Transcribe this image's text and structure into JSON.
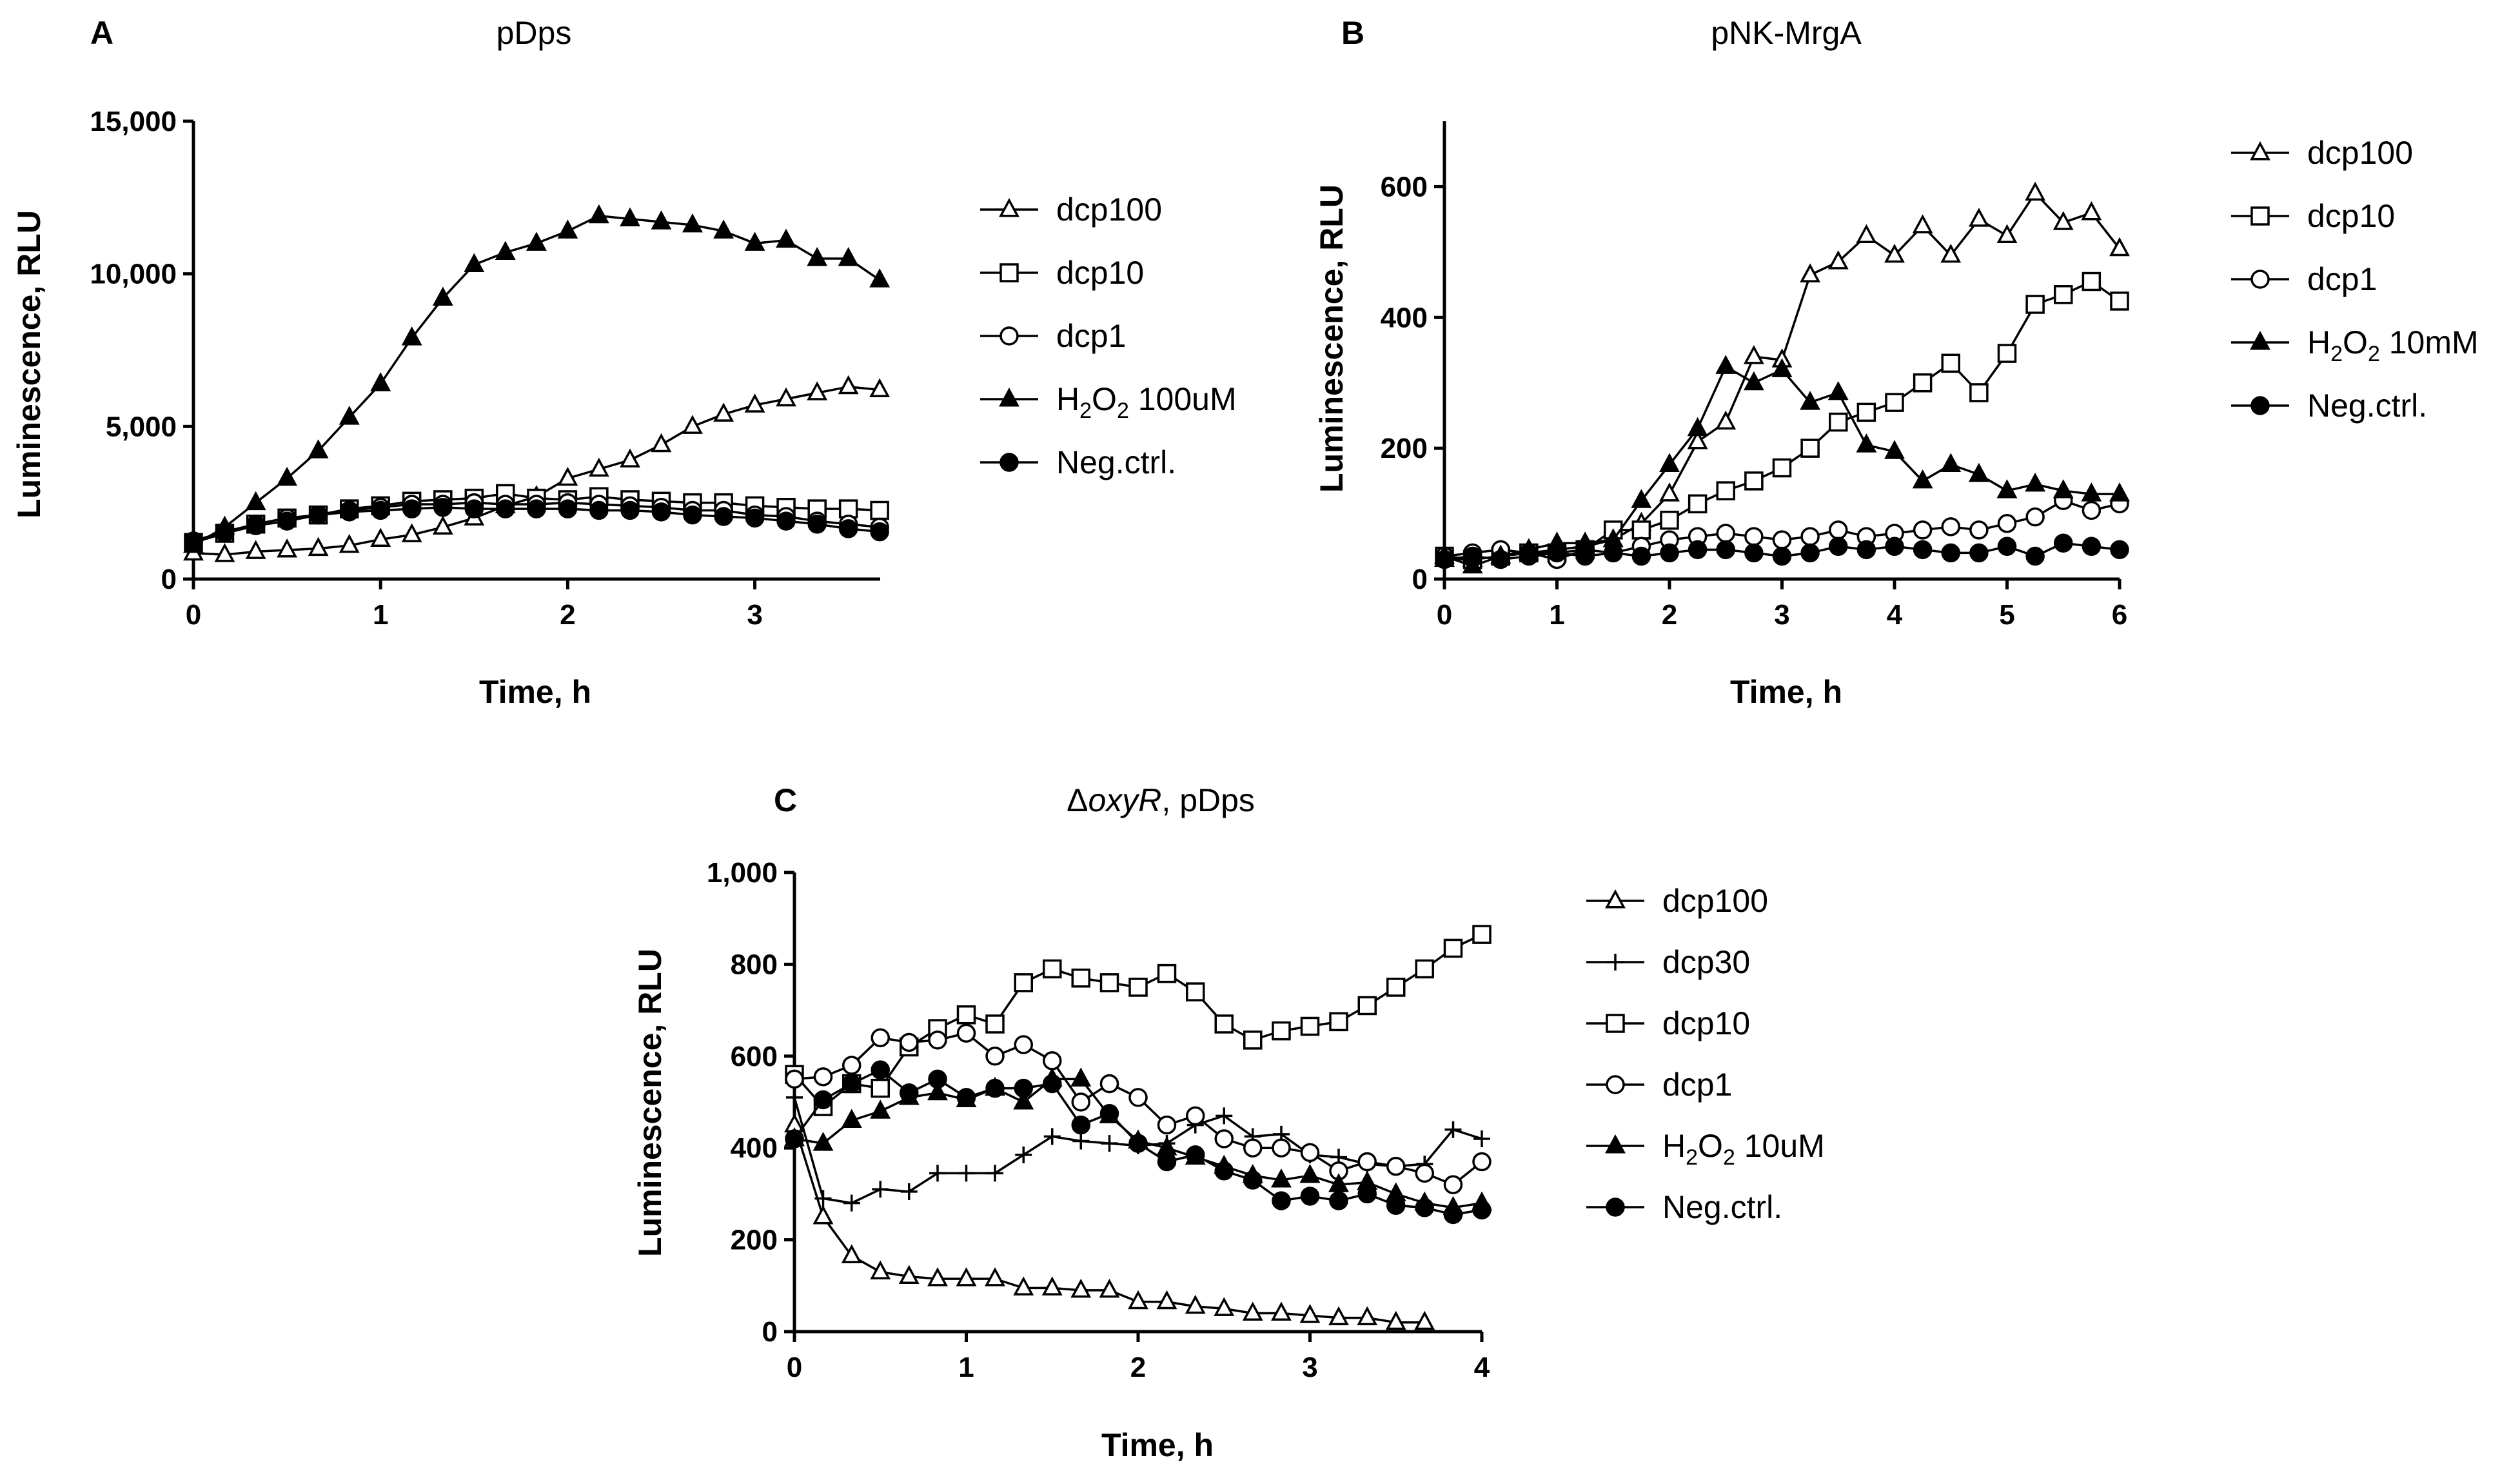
{
  "chart_data": [
    {
      "panel": "A",
      "type": "line",
      "title": "pDps",
      "xlabel": "Time, h",
      "ylabel": "Luminescence, RLU",
      "xlim": [
        0,
        3.67
      ],
      "ylim": [
        0,
        15000
      ],
      "xticks": [
        0,
        1,
        2,
        3
      ],
      "xtick_labels": [
        "0",
        "1",
        "2",
        "3"
      ],
      "yticks": [
        0,
        5000,
        10000,
        15000
      ],
      "ytick_labels": [
        "0",
        "5,000",
        "10,000",
        "15,000"
      ],
      "x": [
        0,
        0.167,
        0.333,
        0.5,
        0.667,
        0.833,
        1.0,
        1.167,
        1.333,
        1.5,
        1.667,
        1.833,
        2.0,
        2.167,
        2.333,
        2.5,
        2.667,
        2.833,
        3.0,
        3.167,
        3.333,
        3.5,
        3.667
      ],
      "series": [
        {
          "name": "dcp100",
          "legend": {
            "text": "dcp100"
          },
          "marker": "triangle-open",
          "values": [
            850,
            800,
            900,
            950,
            1000,
            1100,
            1300,
            1450,
            1700,
            2000,
            2400,
            2700,
            3300,
            3600,
            3900,
            4400,
            5000,
            5400,
            5700,
            5900,
            6100,
            6300,
            6200
          ]
        },
        {
          "name": "dcp10",
          "legend": {
            "text": "dcp10"
          },
          "marker": "square-open",
          "values": [
            1200,
            1500,
            1800,
            2000,
            2100,
            2300,
            2400,
            2550,
            2600,
            2650,
            2800,
            2650,
            2600,
            2700,
            2600,
            2550,
            2500,
            2500,
            2400,
            2350,
            2300,
            2300,
            2250
          ]
        },
        {
          "name": "dcp1",
          "legend": {
            "text": "dcp1"
          },
          "marker": "circle-open",
          "values": [
            1250,
            1550,
            1800,
            2000,
            2100,
            2250,
            2350,
            2450,
            2450,
            2500,
            2450,
            2450,
            2500,
            2450,
            2400,
            2350,
            2250,
            2250,
            2100,
            2050,
            1900,
            1800,
            1700
          ]
        },
        {
          "name": "H2O2 100uM",
          "legend": {
            "text": "H",
            "sub1": "2",
            "mid": "O",
            "sub2": "2",
            "tail": " 100uM"
          },
          "marker": "triangle-filled",
          "values": [
            1100,
            1700,
            2500,
            3300,
            4200,
            5300,
            6400,
            7900,
            9200,
            10300,
            10700,
            11000,
            11400,
            11900,
            11800,
            11700,
            11600,
            11400,
            11000,
            11100,
            10500,
            10500,
            9800
          ]
        },
        {
          "name": "Neg.ctrl.",
          "legend": {
            "text": "Neg.ctrl."
          },
          "marker": "circle-filled",
          "values": [
            1200,
            1500,
            1750,
            1900,
            2100,
            2200,
            2250,
            2300,
            2350,
            2300,
            2300,
            2300,
            2300,
            2250,
            2250,
            2200,
            2100,
            2050,
            2000,
            1900,
            1800,
            1650,
            1550
          ]
        }
      ]
    },
    {
      "panel": "B",
      "type": "line",
      "title": "pNK-MrgA",
      "xlabel": "Time, h",
      "ylabel": "Luminescence, RLU",
      "xlim": [
        0,
        6
      ],
      "ylim": [
        0,
        700
      ],
      "xticks": [
        0,
        1,
        2,
        3,
        4,
        5,
        6
      ],
      "xtick_labels": [
        "0",
        "1",
        "2",
        "3",
        "4",
        "5",
        "6"
      ],
      "yticks": [
        0,
        200,
        400,
        600
      ],
      "ytick_labels": [
        "0",
        "200",
        "400",
        "600"
      ],
      "x": [
        0,
        0.25,
        0.5,
        0.75,
        1.0,
        1.25,
        1.5,
        1.75,
        2.0,
        2.25,
        2.5,
        2.75,
        3.0,
        3.25,
        3.5,
        3.75,
        4.0,
        4.25,
        4.5,
        4.75,
        5.0,
        5.25,
        5.5,
        5.75,
        6.0
      ],
      "series": [
        {
          "name": "dcp100",
          "legend": {
            "text": "dcp100"
          },
          "marker": "triangle-open",
          "values": [
            30,
            30,
            35,
            40,
            45,
            50,
            60,
            85,
            130,
            210,
            240,
            340,
            335,
            465,
            485,
            525,
            495,
            540,
            495,
            550,
            525,
            590,
            545,
            560,
            505
          ]
        },
        {
          "name": "dcp10",
          "legend": {
            "text": "dcp10"
          },
          "marker": "square-open",
          "values": [
            35,
            30,
            35,
            40,
            40,
            45,
            75,
            75,
            90,
            115,
            135,
            150,
            170,
            200,
            240,
            255,
            270,
            300,
            330,
            285,
            345,
            420,
            435,
            455,
            425
          ]
        },
        {
          "name": "dcp1",
          "legend": {
            "text": "dcp1"
          },
          "marker": "circle-open",
          "values": [
            35,
            40,
            45,
            40,
            30,
            45,
            40,
            50,
            60,
            65,
            70,
            65,
            60,
            65,
            75,
            65,
            70,
            75,
            80,
            75,
            85,
            95,
            120,
            105,
            115
          ]
        },
        {
          "name": "H2O2 10mM",
          "legend": {
            "text": "H",
            "sub1": "2",
            "mid": "O",
            "sub2": "2",
            "tail": " 10mM"
          },
          "marker": "triangle-filled",
          "values": [
            35,
            20,
            35,
            45,
            55,
            55,
            60,
            120,
            175,
            230,
            325,
            300,
            320,
            270,
            285,
            205,
            195,
            150,
            175,
            160,
            135,
            145,
            135,
            130,
            130
          ]
        },
        {
          "name": "Neg.ctrl.",
          "legend": {
            "text": "Neg.ctrl."
          },
          "marker": "circle-filled",
          "values": [
            30,
            35,
            30,
            35,
            40,
            35,
            40,
            35,
            40,
            45,
            45,
            40,
            35,
            40,
            50,
            45,
            50,
            45,
            40,
            40,
            50,
            35,
            55,
            50,
            45
          ]
        }
      ]
    },
    {
      "panel": "C",
      "type": "line",
      "title": "ΔoxyR, pDps",
      "title_parts": {
        "prefix": "Δ",
        "italic": "oxyR",
        "suffix": ", pDps"
      },
      "xlabel": "Time, h",
      "ylabel": "Luminescence, RLU",
      "xlim": [
        0,
        4
      ],
      "ylim": [
        0,
        1000
      ],
      "xticks": [
        0,
        1,
        2,
        3,
        4
      ],
      "xtick_labels": [
        "0",
        "1",
        "2",
        "3",
        "4"
      ],
      "yticks": [
        0,
        200,
        400,
        600,
        800,
        1000
      ],
      "ytick_labels": [
        "0",
        "200",
        "400",
        "600",
        "800",
        "1,000"
      ],
      "x": [
        0,
        0.167,
        0.333,
        0.5,
        0.667,
        0.833,
        1.0,
        1.167,
        1.333,
        1.5,
        1.667,
        1.833,
        2.0,
        2.167,
        2.333,
        2.5,
        2.667,
        2.833,
        3.0,
        3.167,
        3.333,
        3.5,
        3.667,
        3.833,
        4.0
      ],
      "series": [
        {
          "name": "dcp100",
          "legend": {
            "text": "dcp100"
          },
          "marker": "triangle-open",
          "values": [
            450,
            250,
            165,
            130,
            120,
            115,
            115,
            115,
            95,
            95,
            90,
            90,
            65,
            65,
            55,
            50,
            40,
            40,
            35,
            30,
            30,
            20,
            20,
            null,
            null
          ]
        },
        {
          "name": "dcp30",
          "legend": {
            "text": "dcp30"
          },
          "marker": "plus",
          "values": [
            510,
            290,
            280,
            310,
            305,
            345,
            345,
            345,
            385,
            425,
            415,
            410,
            405,
            410,
            450,
            470,
            425,
            430,
            385,
            380,
            365,
            360,
            365,
            440,
            420
          ]
        },
        {
          "name": "dcp10",
          "legend": {
            "text": "dcp10"
          },
          "marker": "square-open",
          "values": [
            560,
            490,
            540,
            530,
            620,
            660,
            690,
            670,
            760,
            790,
            770,
            760,
            750,
            780,
            740,
            670,
            635,
            655,
            665,
            675,
            710,
            750,
            790,
            835,
            865
          ]
        },
        {
          "name": "dcp1",
          "legend": {
            "text": "dcp1"
          },
          "marker": "circle-open",
          "values": [
            550,
            555,
            580,
            640,
            630,
            635,
            650,
            600,
            625,
            590,
            500,
            540,
            510,
            450,
            470,
            420,
            400,
            400,
            390,
            350,
            370,
            360,
            345,
            320,
            370
          ]
        },
        {
          "name": "H2O2 10uM",
          "legend": {
            "text": "H",
            "sub1": "2",
            "mid": "O",
            "sub2": "2",
            "tail": " 10uM"
          },
          "marker": "triangle-filled",
          "values": [
            420,
            410,
            460,
            480,
            510,
            520,
            505,
            530,
            500,
            550,
            550,
            470,
            415,
            400,
            380,
            360,
            340,
            330,
            340,
            320,
            325,
            300,
            280,
            270,
            280
          ]
        },
        {
          "name": "Neg.ctrl.",
          "legend": {
            "text": "Neg.ctrl."
          },
          "marker": "circle-filled",
          "values": [
            420,
            505,
            540,
            570,
            520,
            550,
            510,
            530,
            530,
            540,
            450,
            475,
            410,
            370,
            385,
            350,
            330,
            285,
            295,
            285,
            300,
            275,
            270,
            255,
            265
          ]
        }
      ]
    }
  ]
}
